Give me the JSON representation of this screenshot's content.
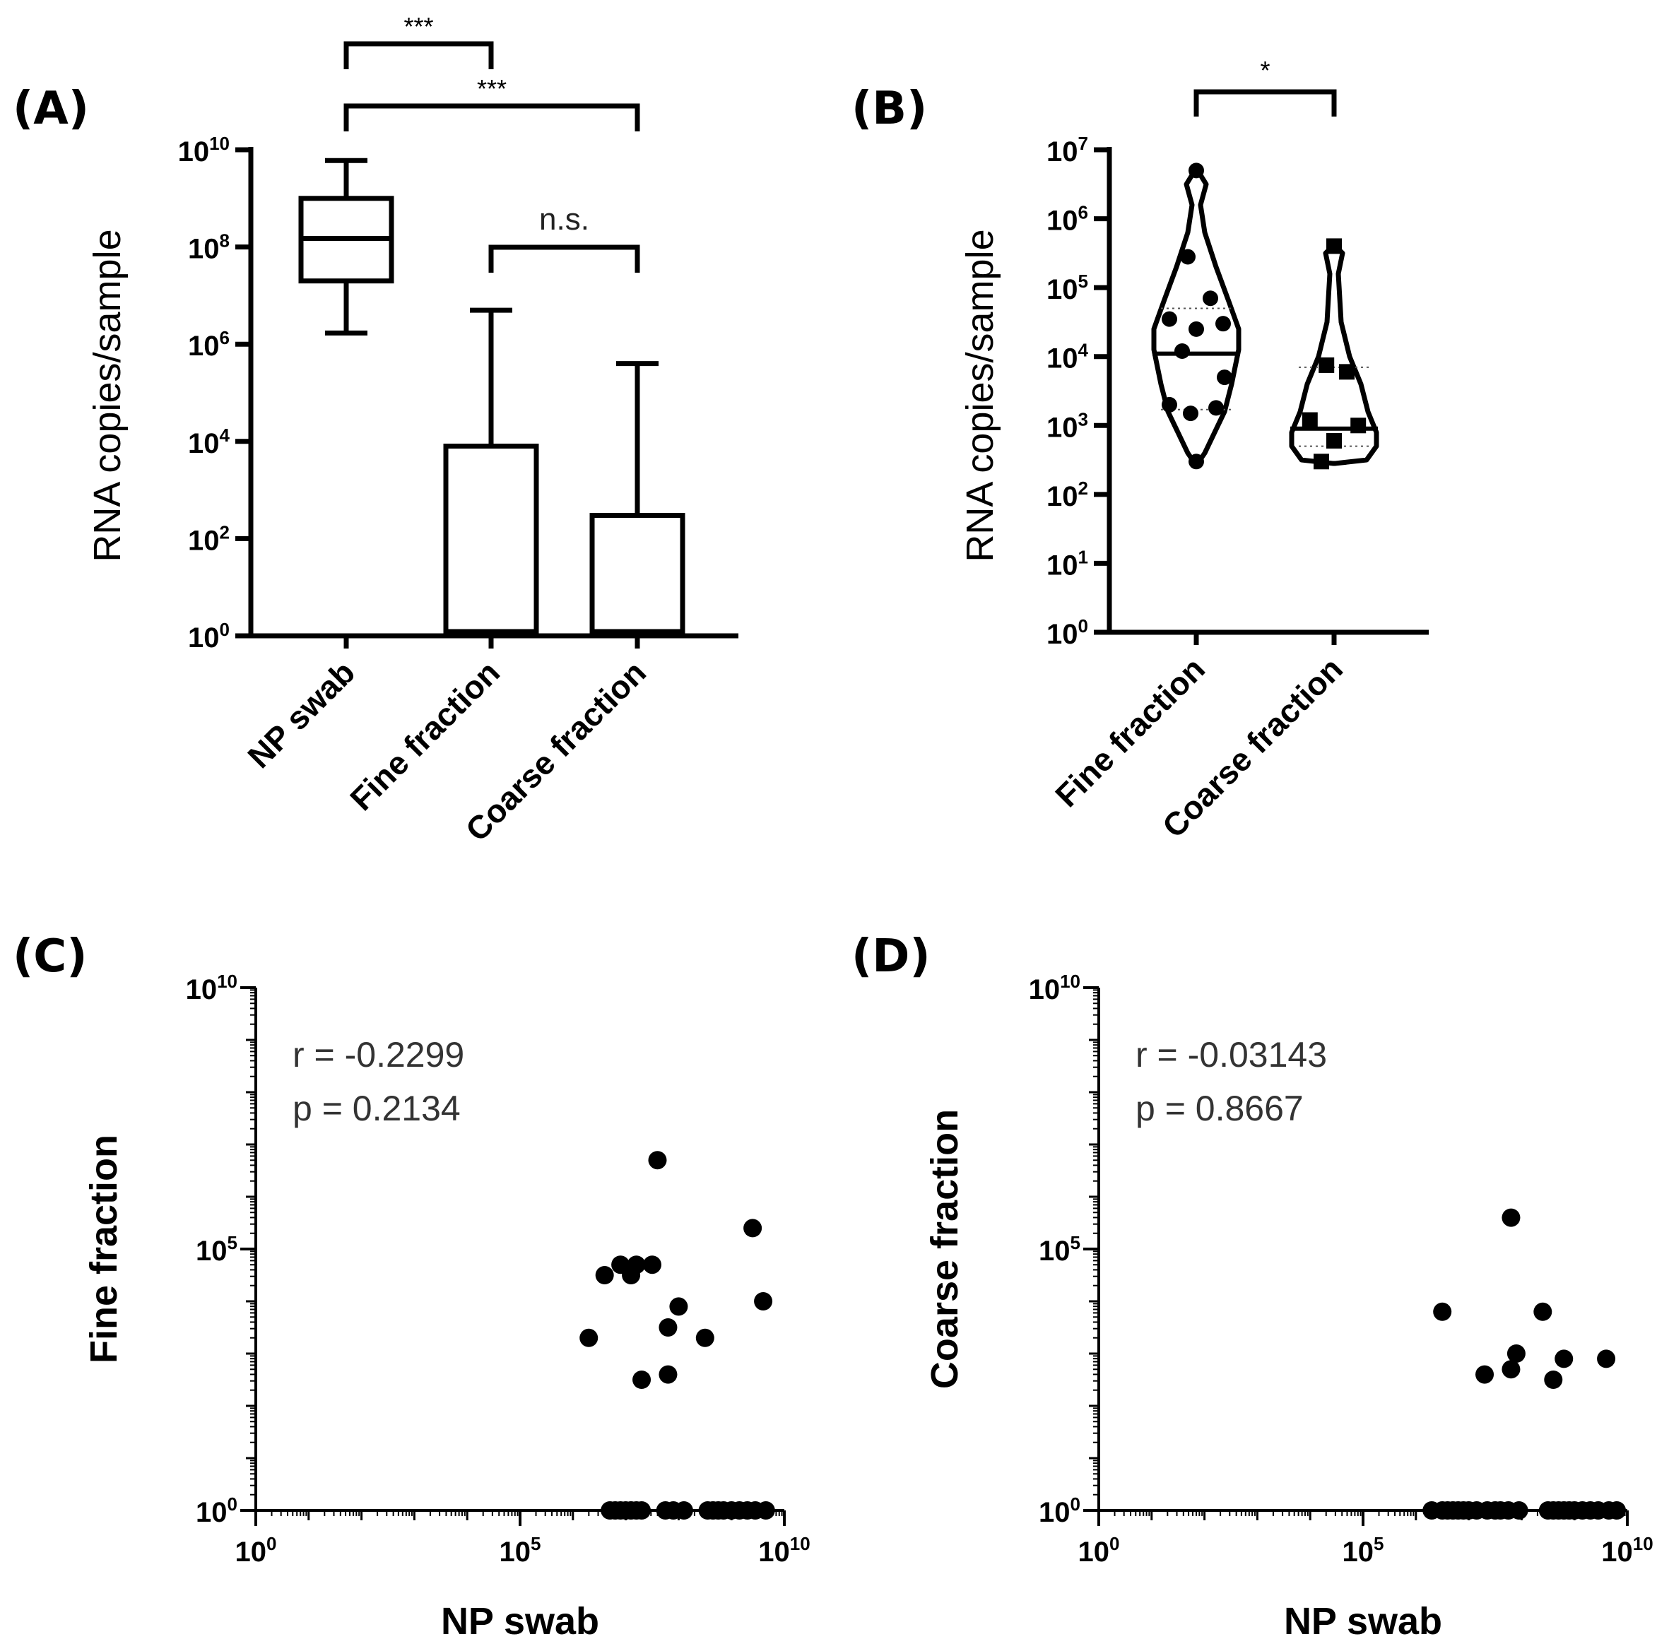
{
  "chart_data": [
    {
      "panel": "(A)",
      "type": "box_and_bar",
      "ylabel": "RNA copies/sample",
      "yscale": "log10",
      "ylim_exp": [
        0,
        10
      ],
      "yticks_exp": [
        0,
        2,
        4,
        6,
        8,
        10
      ],
      "categories": [
        "NP swab",
        "Fine fraction",
        "Coarse fraction"
      ],
      "box": {
        "category": "NP swab",
        "whisker_low": 1700000,
        "q1": 20000000,
        "median": 150000000,
        "q3": 1000000000,
        "whisker_high": 6000000000
      },
      "bars": [
        {
          "category": "Fine fraction",
          "value": 8000,
          "error_high": 5000000
        },
        {
          "category": "Coarse fraction",
          "value": 300,
          "error_high": 400000
        }
      ],
      "significance": [
        {
          "pair": [
            "NP swab",
            "Fine fraction"
          ],
          "label": "***"
        },
        {
          "pair": [
            "NP swab",
            "Coarse fraction"
          ],
          "label": "***"
        },
        {
          "pair": [
            "Fine fraction",
            "Coarse fraction"
          ],
          "label": "n.s."
        }
      ]
    },
    {
      "panel": "(B)",
      "type": "violin",
      "ylabel": "RNA copies/sample",
      "yscale": "log10",
      "ylim_exp": [
        0,
        7
      ],
      "yticks_exp": [
        0,
        1,
        2,
        3,
        4,
        5,
        6,
        7
      ],
      "categories": [
        "Fine fraction",
        "Coarse fraction"
      ],
      "series": [
        {
          "name": "Fine fraction",
          "marker": "circle",
          "median": 11000,
          "q1": 1700,
          "q3": 50000,
          "values": [
            5000000,
            280000,
            70000,
            35000,
            30000,
            25000,
            12000,
            5000,
            2000,
            1500,
            1800,
            300
          ]
        },
        {
          "name": "Coarse fraction",
          "marker": "square",
          "median": 900,
          "q1": 500,
          "q3": 7000,
          "values": [
            400000,
            7500,
            6000,
            1200,
            1000,
            600,
            300
          ]
        }
      ],
      "significance": [
        {
          "pair": [
            "Fine fraction",
            "Coarse fraction"
          ],
          "label": "*"
        }
      ]
    },
    {
      "panel": "(C)",
      "type": "scatter",
      "xlabel": "NP swab",
      "ylabel": "Fine fraction",
      "xscale": "log10",
      "yscale": "log10",
      "xlim_exp": [
        0,
        10
      ],
      "ylim_exp": [
        0,
        10
      ],
      "xticks_exp": [
        0,
        5,
        10
      ],
      "yticks_exp": [
        0,
        5,
        10
      ],
      "annotation": [
        "r = -0.2299",
        "p = 0.2134"
      ],
      "points_exp": [
        [
          7.6,
          6.7
        ],
        [
          6.3,
          3.3
        ],
        [
          6.6,
          4.5
        ],
        [
          7.1,
          4.5
        ],
        [
          7.5,
          4.7
        ],
        [
          7.2,
          4.7
        ],
        [
          6.9,
          4.7
        ],
        [
          7.8,
          3.5
        ],
        [
          8.0,
          3.9
        ],
        [
          7.8,
          2.6
        ],
        [
          7.3,
          2.5
        ],
        [
          8.5,
          3.3
        ],
        [
          9.4,
          5.4
        ],
        [
          9.6,
          4.0
        ],
        [
          6.7,
          0
        ],
        [
          6.8,
          0
        ],
        [
          6.9,
          0
        ],
        [
          7.0,
          0
        ],
        [
          7.1,
          0
        ],
        [
          7.2,
          0
        ],
        [
          7.3,
          0
        ],
        [
          7.75,
          0
        ],
        [
          7.9,
          0
        ],
        [
          8.1,
          0
        ],
        [
          8.55,
          0
        ],
        [
          8.65,
          0
        ],
        [
          8.75,
          0
        ],
        [
          8.85,
          0
        ],
        [
          9.0,
          0
        ],
        [
          9.15,
          0
        ],
        [
          9.3,
          0
        ],
        [
          9.45,
          0
        ],
        [
          9.65,
          0
        ]
      ]
    },
    {
      "panel": "(D)",
      "type": "scatter",
      "xlabel": "NP swab",
      "ylabel": "Coarse fraction",
      "xscale": "log10",
      "yscale": "log10",
      "xlim_exp": [
        0,
        10
      ],
      "ylim_exp": [
        0,
        10
      ],
      "xticks_exp": [
        0,
        5,
        10
      ],
      "yticks_exp": [
        0,
        5,
        10
      ],
      "annotation": [
        "r = -0.03143",
        "p = 0.8667"
      ],
      "points_exp": [
        [
          7.8,
          5.6
        ],
        [
          6.5,
          3.8
        ],
        [
          7.3,
          2.6
        ],
        [
          7.8,
          2.7
        ],
        [
          7.9,
          3.0
        ],
        [
          8.4,
          3.8
        ],
        [
          8.6,
          2.5
        ],
        [
          8.8,
          2.9
        ],
        [
          9.6,
          2.9
        ],
        [
          6.3,
          0
        ],
        [
          6.5,
          0
        ],
        [
          6.6,
          0
        ],
        [
          6.7,
          0
        ],
        [
          6.8,
          0
        ],
        [
          6.9,
          0
        ],
        [
          7.0,
          0
        ],
        [
          7.15,
          0
        ],
        [
          7.35,
          0
        ],
        [
          7.5,
          0
        ],
        [
          7.6,
          0
        ],
        [
          7.75,
          0
        ],
        [
          7.95,
          0
        ],
        [
          8.5,
          0
        ],
        [
          8.6,
          0
        ],
        [
          8.7,
          0
        ],
        [
          8.8,
          0
        ],
        [
          8.9,
          0
        ],
        [
          9.0,
          0
        ],
        [
          9.15,
          0
        ],
        [
          9.3,
          0
        ],
        [
          9.45,
          0
        ],
        [
          9.65,
          0
        ],
        [
          9.8,
          0
        ]
      ]
    }
  ]
}
